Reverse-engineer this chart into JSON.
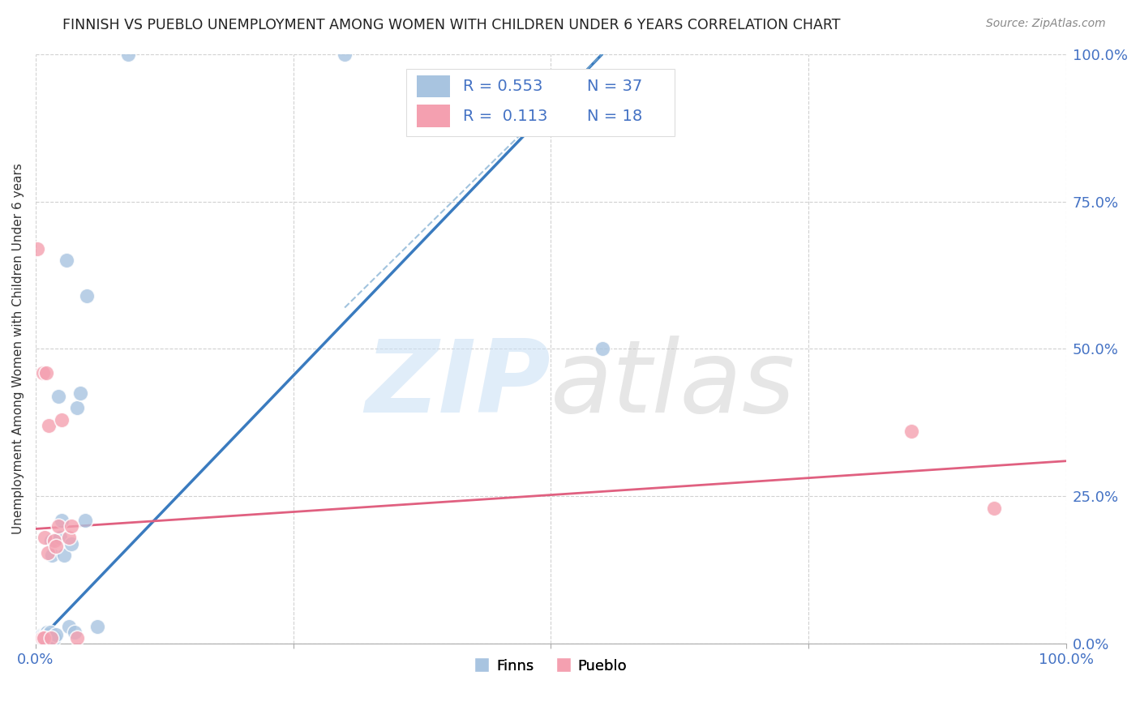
{
  "title": "FINNISH VS PUEBLO UNEMPLOYMENT AMONG WOMEN WITH CHILDREN UNDER 6 YEARS CORRELATION CHART",
  "source": "Source: ZipAtlas.com",
  "ylabel": "Unemployment Among Women with Children Under 6 years",
  "xlim": [
    0,
    1
  ],
  "ylim": [
    0,
    1
  ],
  "ytick_labels": [
    "0.0%",
    "25.0%",
    "50.0%",
    "75.0%",
    "100.0%"
  ],
  "ytick_values": [
    0,
    0.25,
    0.5,
    0.75,
    1.0
  ],
  "legend_finn_R": "0.553",
  "legend_finn_N": "37",
  "legend_pueblo_R": "0.113",
  "legend_pueblo_N": "18",
  "finn_color": "#a8c4e0",
  "pueblo_color": "#f4a0b0",
  "finn_line_color": "#3a7bbf",
  "pueblo_line_color": "#e06080",
  "watermark_zip": "ZIP",
  "watermark_atlas": "atlas",
  "finns_x": [
    0.003,
    0.004,
    0.005,
    0.006,
    0.007,
    0.007,
    0.008,
    0.009,
    0.009,
    0.01,
    0.01,
    0.01,
    0.011,
    0.012,
    0.012,
    0.013,
    0.014,
    0.015,
    0.016,
    0.018,
    0.02,
    0.022,
    0.024,
    0.025,
    0.028,
    0.03,
    0.032,
    0.035,
    0.038,
    0.04,
    0.043,
    0.048,
    0.05,
    0.06,
    0.09,
    0.3,
    0.55
  ],
  "finns_y": [
    0.01,
    0.008,
    0.012,
    0.015,
    0.005,
    0.01,
    0.015,
    0.008,
    0.012,
    0.005,
    0.01,
    0.018,
    0.02,
    0.005,
    0.015,
    0.01,
    0.02,
    0.175,
    0.15,
    0.01,
    0.015,
    0.42,
    0.18,
    0.21,
    0.15,
    0.65,
    0.03,
    0.17,
    0.02,
    0.4,
    0.425,
    0.21,
    0.59,
    0.03,
    1.0,
    1.0,
    0.5
  ],
  "pueblo_x": [
    0.002,
    0.006,
    0.007,
    0.008,
    0.009,
    0.01,
    0.012,
    0.013,
    0.015,
    0.018,
    0.02,
    0.022,
    0.025,
    0.032,
    0.035,
    0.04,
    0.85,
    0.93
  ],
  "pueblo_y": [
    0.67,
    0.01,
    0.46,
    0.01,
    0.18,
    0.46,
    0.155,
    0.37,
    0.01,
    0.175,
    0.165,
    0.2,
    0.38,
    0.18,
    0.2,
    0.01,
    0.36,
    0.23
  ],
  "finn_line_x": [
    0.0,
    0.55
  ],
  "finn_line_y": [
    0.0,
    1.0
  ],
  "pueblo_line_x": [
    0.0,
    1.0
  ],
  "pueblo_line_y": [
    0.195,
    0.31
  ],
  "dashed_line_x": [
    0.3,
    0.55
  ],
  "dashed_line_y": [
    0.57,
    1.0
  ]
}
